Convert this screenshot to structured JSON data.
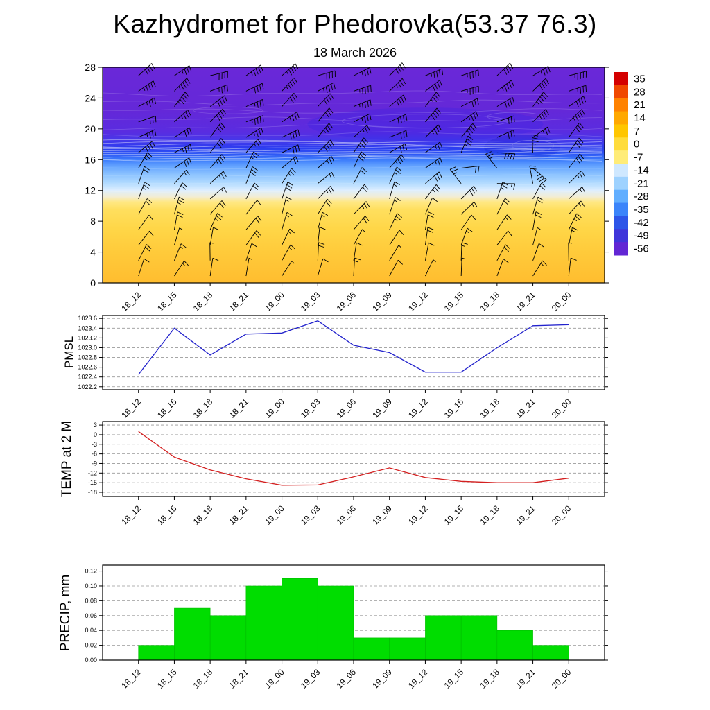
{
  "title": "Kazhydromet for Phedorovka(53.37 76.3)",
  "subtitle": "18 March 2026",
  "time_labels": [
    "18_12",
    "18_15",
    "18_18",
    "18_21",
    "19_00",
    "19_03",
    "19_06",
    "19_09",
    "19_12",
    "19_15",
    "19_18",
    "19_21",
    "20_00"
  ],
  "chart_data": [
    {
      "id": "upper-air-section",
      "type": "heatmap",
      "description": "Time-height cross section, shaded temperature (deg C) with wind barbs",
      "x_categories_ref": "time_labels",
      "ylim": [
        0,
        28
      ],
      "yticks": [
        0,
        4,
        8,
        12,
        16,
        20,
        24,
        28
      ],
      "colorbar": {
        "tick_labels": [
          "35",
          "28",
          "21",
          "14",
          "7",
          "0",
          "-7",
          "-14",
          "-21",
          "-28",
          "-35",
          "-42",
          "-49",
          "-56"
        ],
        "colors": [
          "#d40000",
          "#f04800",
          "#ff8200",
          "#ffa800",
          "#ffc600",
          "#ffdc3c",
          "#ffec78",
          "#cfe8ff",
          "#9ed2ff",
          "#61aeff",
          "#3b84fa",
          "#2d55e8",
          "#3f35da",
          "#6226d4"
        ]
      },
      "field_gradient_stops": [
        [
          0,
          "#6a28d8"
        ],
        [
          20,
          "#6428d8"
        ],
        [
          30,
          "#5a2ce0"
        ],
        [
          34,
          "#4438ea"
        ],
        [
          37.5,
          "#2b3cf0"
        ],
        [
          40,
          "#2e55f4"
        ],
        [
          43,
          "#3d7dfb"
        ],
        [
          46,
          "#66a5ff"
        ],
        [
          50,
          "#8fc5ff"
        ],
        [
          54,
          "#b5dcff"
        ],
        [
          57,
          "#ddeeff"
        ],
        [
          60,
          "#f2edd4"
        ],
        [
          62.5,
          "#ffe883"
        ],
        [
          66,
          "#ffdf5e"
        ],
        [
          75,
          "#ffd647"
        ],
        [
          85,
          "#ffcb3b"
        ],
        [
          100,
          "#ffbd2f"
        ]
      ],
      "wind_profile": [
        {
          "h": 0.9,
          "dir": 18,
          "spd": 10
        },
        {
          "h": 2.9,
          "dir": 15,
          "spd": 15
        },
        {
          "h": 4.9,
          "dir": 22,
          "spd": 15
        },
        {
          "h": 6.9,
          "dir": 25,
          "spd": 20
        },
        {
          "h": 8.9,
          "dir": 30,
          "spd": 20
        },
        {
          "h": 10.9,
          "dir": 32,
          "spd": 25
        },
        {
          "h": 12.9,
          "dir": 35,
          "spd": 25
        },
        {
          "h": 14.9,
          "dir": 40,
          "spd": 30
        },
        {
          "h": 16.9,
          "dir": 48,
          "spd": 35
        },
        {
          "h": 18.9,
          "dir": 52,
          "spd": 35
        },
        {
          "h": 20.9,
          "dir": 55,
          "spd": 40
        },
        {
          "h": 22.9,
          "dir": 52,
          "spd": 40
        },
        {
          "h": 24.9,
          "dir": 58,
          "spd": 45
        },
        {
          "h": 26.9,
          "dir": 60,
          "spd": 45
        }
      ]
    },
    {
      "id": "pmsl",
      "type": "line",
      "ylabel": "PMSL",
      "color": "#2222cc",
      "ylim": [
        1022.14,
        1023.66
      ],
      "yticks": [
        1022.2,
        1022.4,
        1022.6,
        1022.8,
        1023.0,
        1023.2,
        1023.4,
        1023.6
      ],
      "ytick_decimals": 1,
      "values": [
        1022.45,
        1023.4,
        1022.85,
        1023.28,
        1023.3,
        1023.55,
        1023.05,
        1022.9,
        1022.5,
        1022.5,
        1023.0,
        1023.45,
        1023.47
      ]
    },
    {
      "id": "temp-2m",
      "type": "line",
      "ylabel": "TEMP at 2 M",
      "color": "#d42020",
      "ylim": [
        -19.3,
        4.1
      ],
      "yticks": [
        3,
        0,
        -3,
        -6,
        -9,
        -12,
        -15,
        -18
      ],
      "ytick_decimals": 0,
      "values": [
        1,
        -7,
        -11,
        -13.8,
        -15.8,
        -15.7,
        -13.2,
        -10.4,
        -13.4,
        -14.6,
        -15,
        -15,
        -13.6
      ]
    },
    {
      "id": "precip",
      "type": "bar",
      "ylabel": "PRECIP, mm",
      "color": "#00dd00",
      "ylim": [
        0,
        0.128
      ],
      "yticks": [
        0,
        0.02,
        0.04,
        0.06,
        0.08,
        0.1,
        0.12
      ],
      "ytick_decimals": 2,
      "interval_values": [
        0.02,
        0.07,
        0.06,
        0.1,
        0.11,
        0.1,
        0.03,
        0.03,
        0.06,
        0.06,
        0.04,
        0.02
      ],
      "note": "each bar spans one 3-hour interval between consecutive time_labels"
    }
  ]
}
